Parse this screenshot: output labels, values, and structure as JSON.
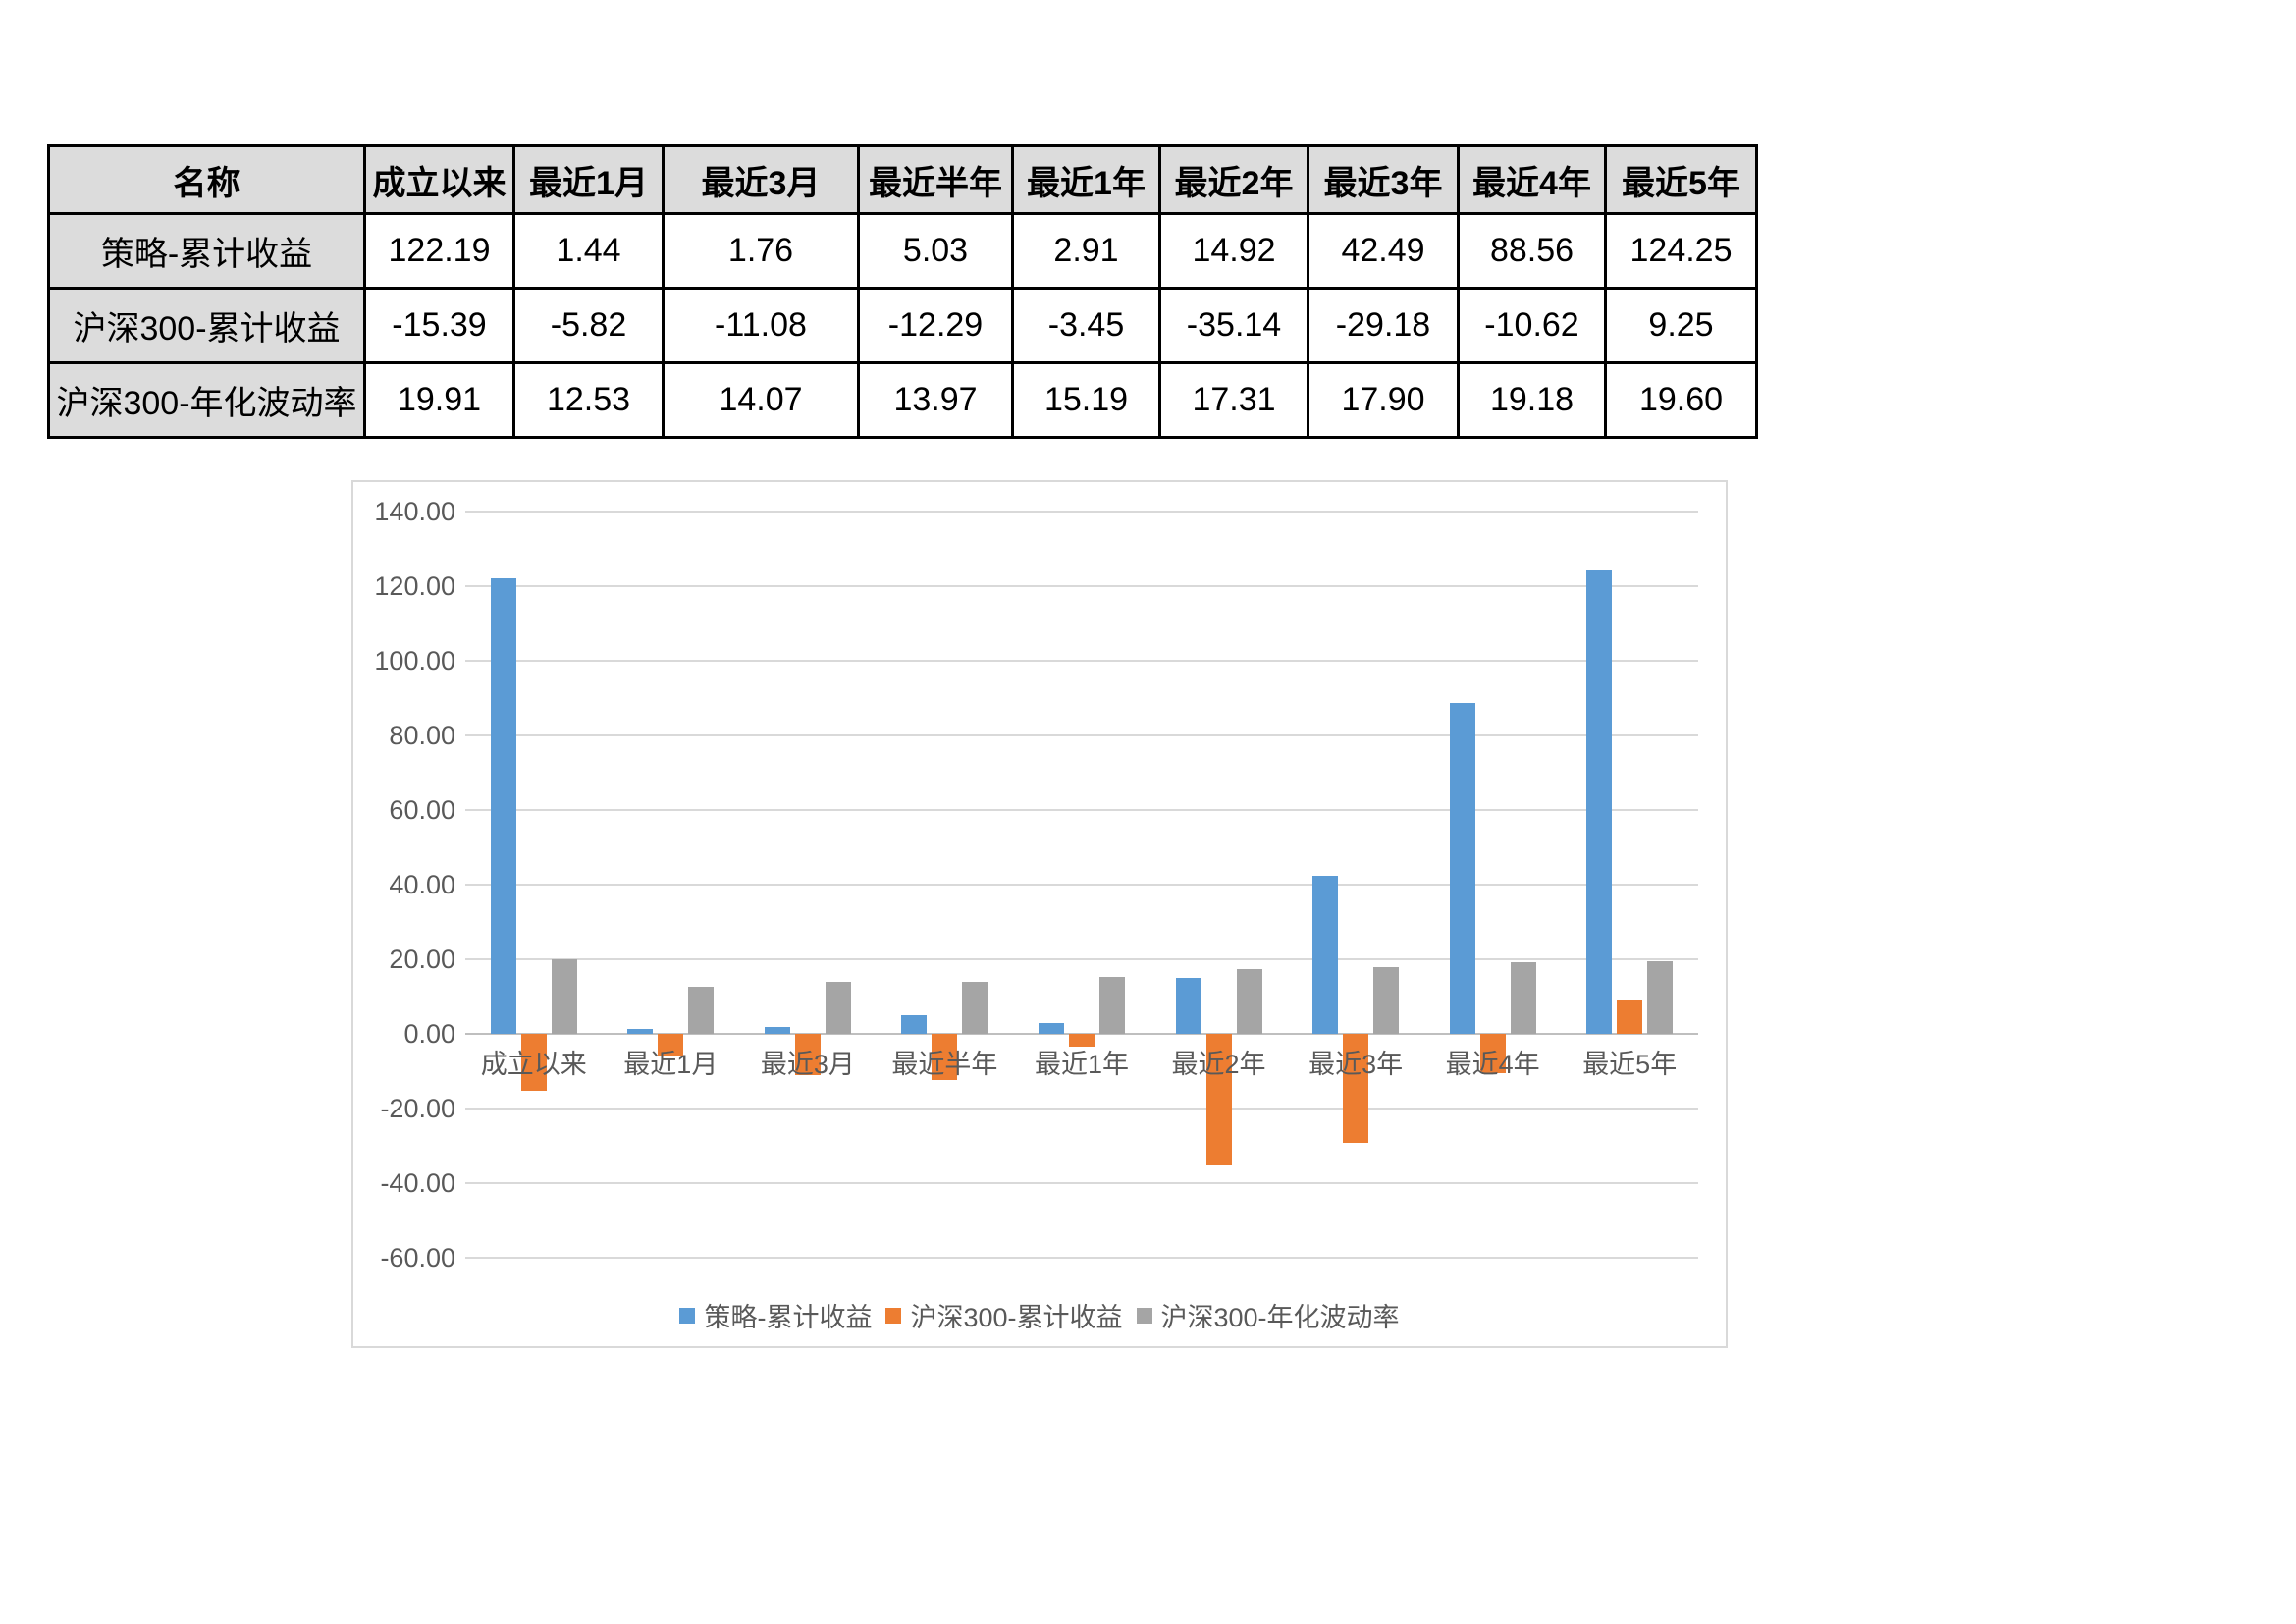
{
  "table": {
    "columns": [
      "名称",
      "成立以来",
      "最近1月",
      "最近3月",
      "最近半年",
      "最近1年",
      "最近2年",
      "最近3年",
      "最近4年",
      "最近5年"
    ],
    "rows": [
      {
        "name": "策略-累计收益",
        "values": [
          "122.19",
          "1.44",
          "1.76",
          "5.03",
          "2.91",
          "14.92",
          "42.49",
          "88.56",
          "124.25"
        ]
      },
      {
        "name": "沪深300-累计收益",
        "values": [
          "-15.39",
          "-5.82",
          "-11.08",
          "-12.29",
          "-3.45",
          "-35.14",
          "-29.18",
          "-10.62",
          "9.25"
        ]
      },
      {
        "name": "沪深300-年化波动率",
        "values": [
          "19.91",
          "12.53",
          "14.07",
          "13.97",
          "15.19",
          "17.31",
          "17.90",
          "19.18",
          "19.60"
        ]
      }
    ]
  },
  "chart_data": {
    "type": "bar",
    "categories": [
      "成立以来",
      "最近1月",
      "最近3月",
      "最近半年",
      "最近1年",
      "最近2年",
      "最近3年",
      "最近4年",
      "最近5年"
    ],
    "series": [
      {
        "name": "策略-累计收益",
        "color": "#5B9BD5",
        "values": [
          122.19,
          1.44,
          1.76,
          5.03,
          2.91,
          14.92,
          42.49,
          88.56,
          124.25
        ]
      },
      {
        "name": "沪深300-累计收益",
        "color": "#ED7D31",
        "values": [
          -15.39,
          -5.82,
          -11.08,
          -12.29,
          -3.45,
          -35.14,
          -29.18,
          -10.62,
          9.25
        ]
      },
      {
        "name": "沪深300-年化波动率",
        "color": "#A5A5A5",
        "values": [
          19.91,
          12.53,
          14.07,
          13.97,
          15.19,
          17.31,
          17.9,
          19.18,
          19.6
        ]
      }
    ],
    "title": "",
    "xlabel": "",
    "ylabel": "",
    "ylim": [
      -60,
      140
    ],
    "ytick_step": 20,
    "ytick_labels": [
      "140.00",
      "120.00",
      "100.00",
      "80.00",
      "60.00",
      "40.00",
      "20.00",
      "0.00",
      "-20.00",
      "-40.00",
      "-60.00"
    ],
    "grid": true,
    "legend_position": "bottom"
  },
  "colors": {
    "series_blue": "#5B9BD5",
    "series_orange": "#ED7D31",
    "series_gray": "#A5A5A5",
    "table_header_bg": "#dcdcdc",
    "table_border": "#000000",
    "grid_line": "#d9d9d9",
    "zero_line": "#bfbfbf",
    "axis_text": "#595959",
    "chart_border": "#d9d9d9",
    "page_bg": "#ffffff"
  }
}
